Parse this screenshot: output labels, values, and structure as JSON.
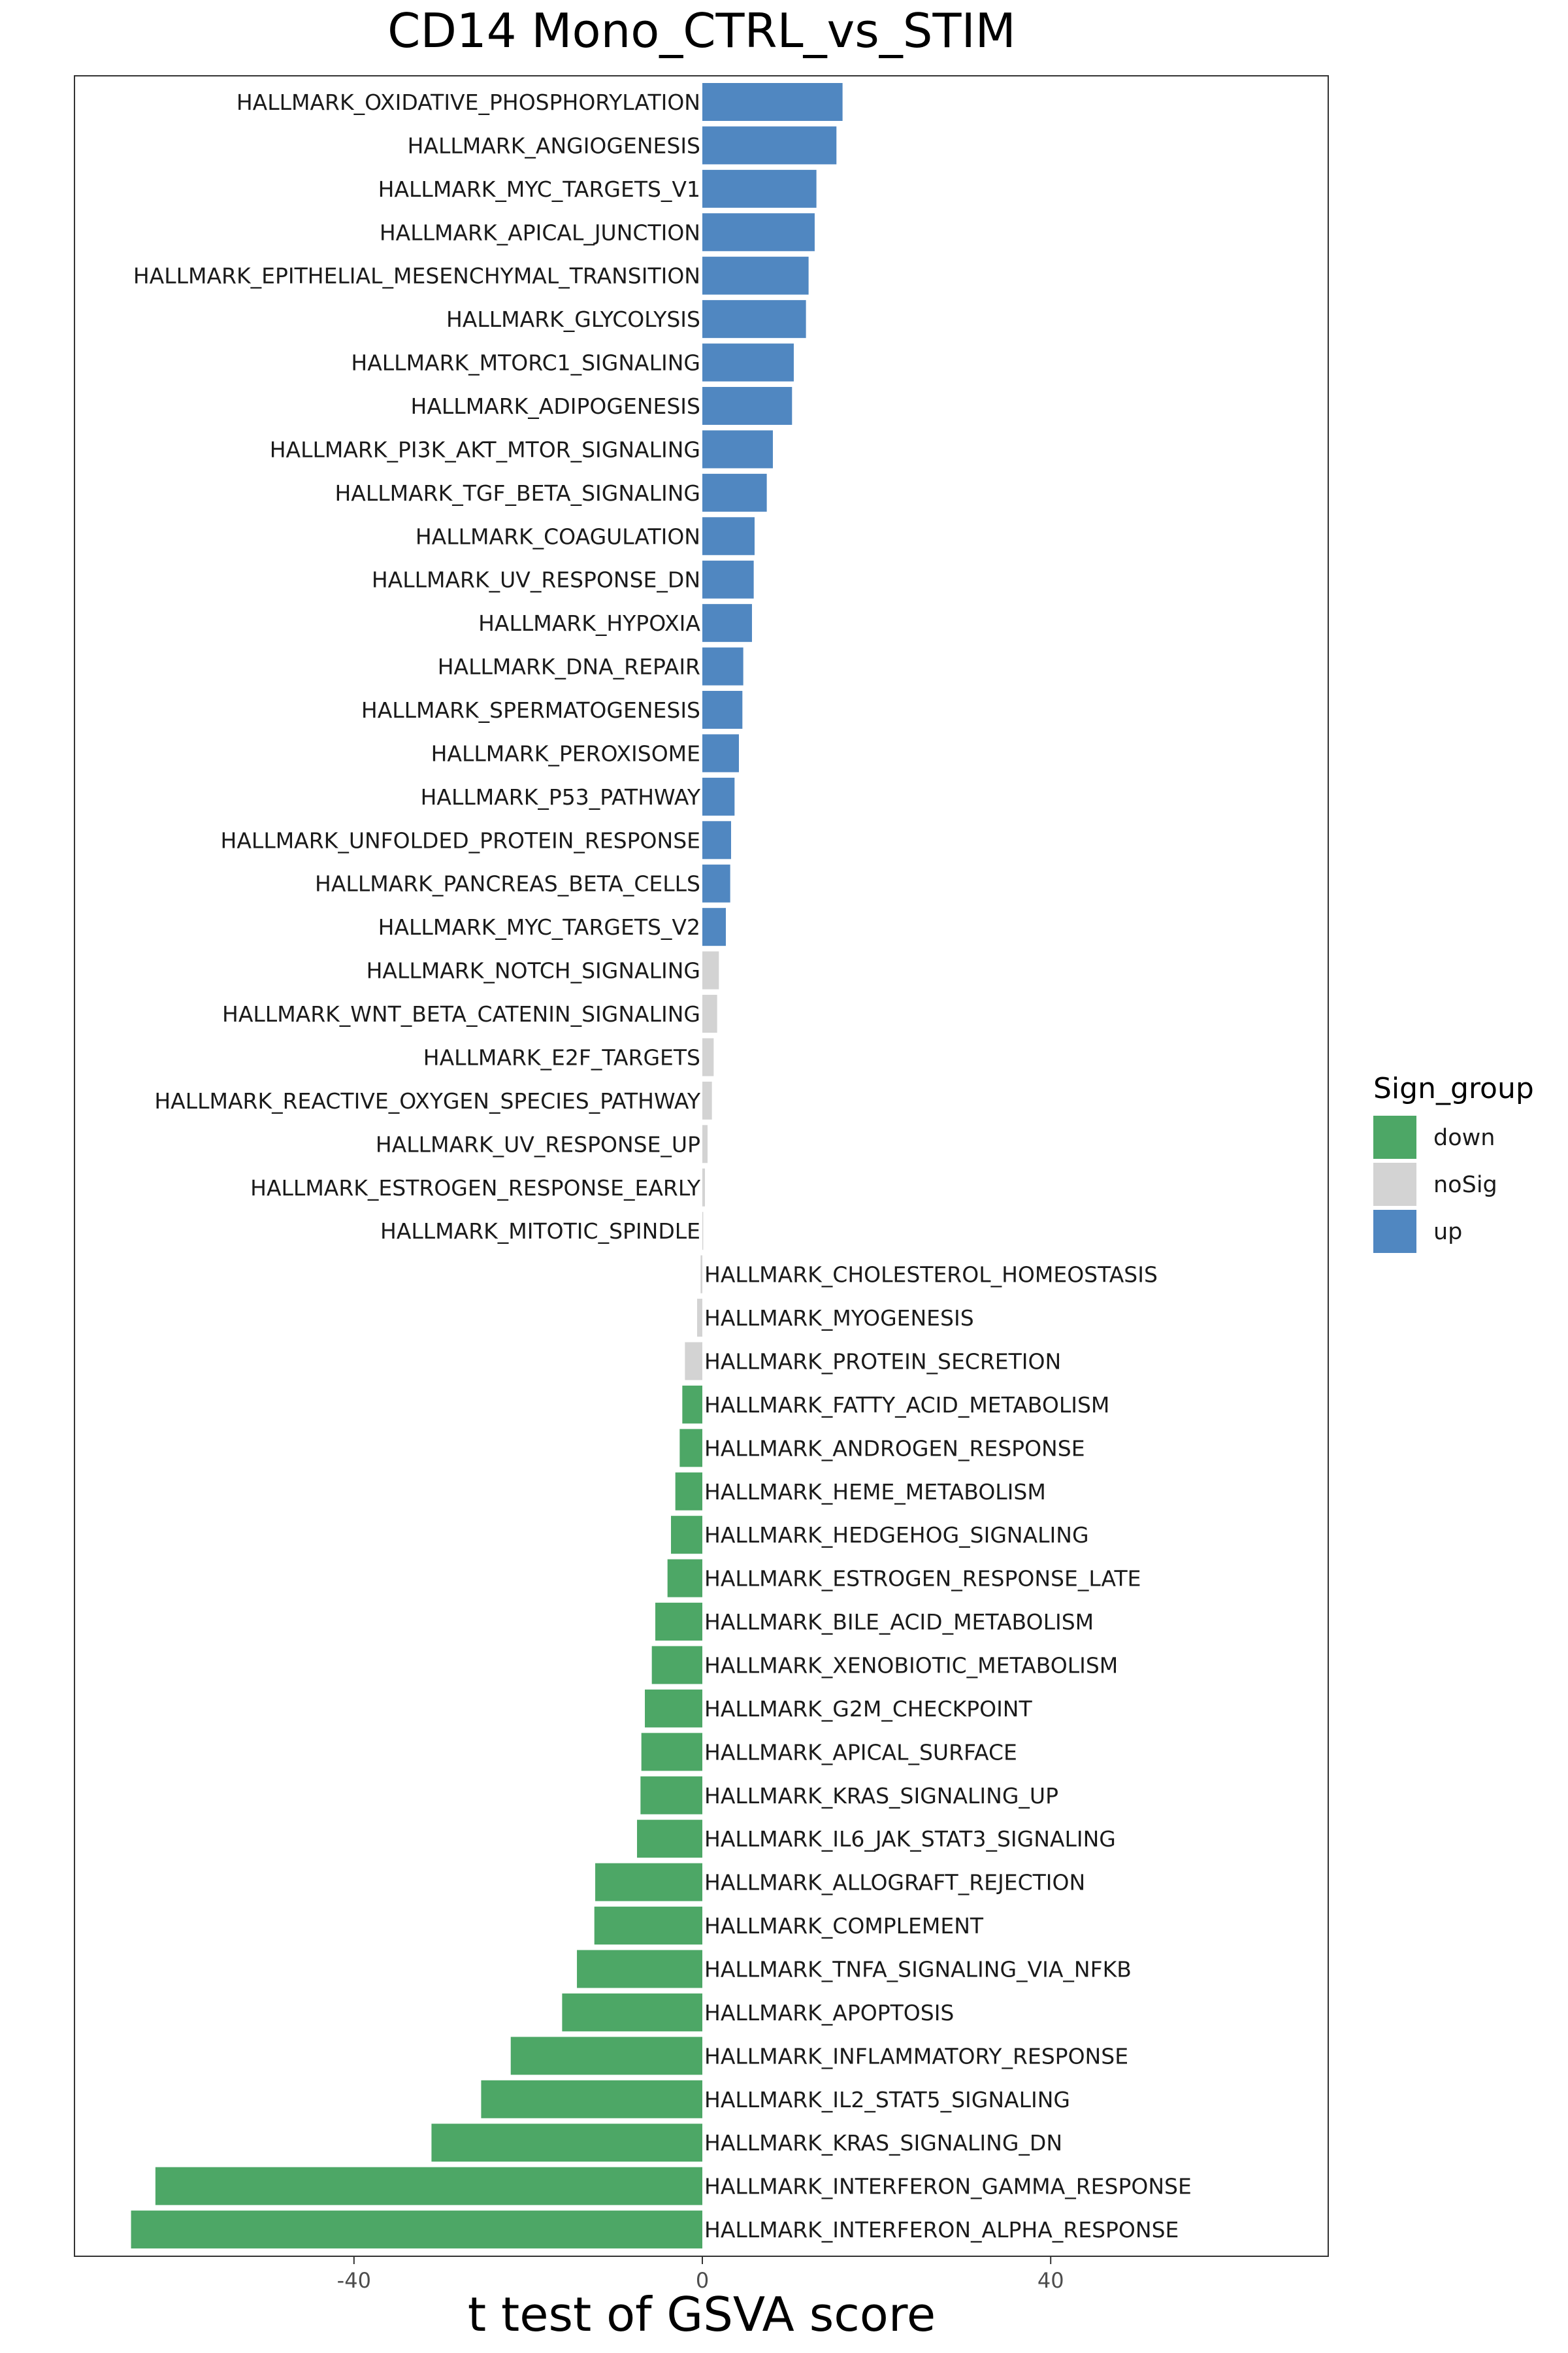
{
  "chart_data": {
    "type": "bar",
    "orientation": "horizontal",
    "title": "CD14 Mono_CTRL_vs_STIM",
    "xlabel": "t test of GSVA score",
    "ylabel": "",
    "xlim": [
      -72,
      72
    ],
    "xticks": [
      -40,
      0,
      40
    ],
    "xtick_labels": [
      "-40",
      "0",
      "40"
    ],
    "grid": false,
    "legend": {
      "title": "Sign_group",
      "placement": "right",
      "entries": [
        {
          "label": "down",
          "color": "#4DA766"
        },
        {
          "label": "noSig",
          "color": "#D3D3D3"
        },
        {
          "label": "up",
          "color": "#5087C1"
        }
      ]
    },
    "colors": {
      "down": "#4DA766",
      "noSig": "#D3D3D3",
      "up": "#5087C1"
    },
    "bars": [
      {
        "label": "HALLMARK_OXIDATIVE_PHOSPHORYLATION",
        "value": 16.1,
        "group": "up"
      },
      {
        "label": "HALLMARK_ANGIOGENESIS",
        "value": 15.4,
        "group": "up"
      },
      {
        "label": "HALLMARK_MYC_TARGETS_V1",
        "value": 13.1,
        "group": "up"
      },
      {
        "label": "HALLMARK_APICAL_JUNCTION",
        "value": 12.9,
        "group": "up"
      },
      {
        "label": "HALLMARK_EPITHELIAL_MESENCHYMAL_TRANSITION",
        "value": 12.2,
        "group": "up"
      },
      {
        "label": "HALLMARK_GLYCOLYSIS",
        "value": 11.9,
        "group": "up"
      },
      {
        "label": "HALLMARK_MTORC1_SIGNALING",
        "value": 10.5,
        "group": "up"
      },
      {
        "label": "HALLMARK_ADIPOGENESIS",
        "value": 10.3,
        "group": "up"
      },
      {
        "label": "HALLMARK_PI3K_AKT_MTOR_SIGNALING",
        "value": 8.1,
        "group": "up"
      },
      {
        "label": "HALLMARK_TGF_BETA_SIGNALING",
        "value": 7.4,
        "group": "up"
      },
      {
        "label": "HALLMARK_COAGULATION",
        "value": 6.0,
        "group": "up"
      },
      {
        "label": "HALLMARK_UV_RESPONSE_DN",
        "value": 5.9,
        "group": "up"
      },
      {
        "label": "HALLMARK_HYPOXIA",
        "value": 5.7,
        "group": "up"
      },
      {
        "label": "HALLMARK_DNA_REPAIR",
        "value": 4.7,
        "group": "up"
      },
      {
        "label": "HALLMARK_SPERMATOGENESIS",
        "value": 4.6,
        "group": "up"
      },
      {
        "label": "HALLMARK_PEROXISOME",
        "value": 4.2,
        "group": "up"
      },
      {
        "label": "HALLMARK_P53_PATHWAY",
        "value": 3.7,
        "group": "up"
      },
      {
        "label": "HALLMARK_UNFOLDED_PROTEIN_RESPONSE",
        "value": 3.3,
        "group": "up"
      },
      {
        "label": "HALLMARK_PANCREAS_BETA_CELLS",
        "value": 3.2,
        "group": "up"
      },
      {
        "label": "HALLMARK_MYC_TARGETS_V2",
        "value": 2.7,
        "group": "up"
      },
      {
        "label": "HALLMARK_NOTCH_SIGNALING",
        "value": 1.9,
        "group": "noSig"
      },
      {
        "label": "HALLMARK_WNT_BETA_CATENIN_SIGNALING",
        "value": 1.7,
        "group": "noSig"
      },
      {
        "label": "HALLMARK_E2F_TARGETS",
        "value": 1.3,
        "group": "noSig"
      },
      {
        "label": "HALLMARK_REACTIVE_OXYGEN_SPECIES_PATHWAY",
        "value": 1.1,
        "group": "noSig"
      },
      {
        "label": "HALLMARK_UV_RESPONSE_UP",
        "value": 0.6,
        "group": "noSig"
      },
      {
        "label": "HALLMARK_ESTROGEN_RESPONSE_EARLY",
        "value": 0.3,
        "group": "noSig"
      },
      {
        "label": "HALLMARK_MITOTIC_SPINDLE",
        "value": 0.1,
        "group": "noSig"
      },
      {
        "label": "HALLMARK_CHOLESTEROL_HOMEOSTASIS",
        "value": -0.2,
        "group": "noSig"
      },
      {
        "label": "HALLMARK_MYOGENESIS",
        "value": -0.6,
        "group": "noSig"
      },
      {
        "label": "HALLMARK_PROTEIN_SECRETION",
        "value": -2.0,
        "group": "noSig"
      },
      {
        "label": "HALLMARK_FATTY_ACID_METABOLISM",
        "value": -2.3,
        "group": "down"
      },
      {
        "label": "HALLMARK_ANDROGEN_RESPONSE",
        "value": -2.6,
        "group": "down"
      },
      {
        "label": "HALLMARK_HEME_METABOLISM",
        "value": -3.1,
        "group": "down"
      },
      {
        "label": "HALLMARK_HEDGEHOG_SIGNALING",
        "value": -3.6,
        "group": "down"
      },
      {
        "label": "HALLMARK_ESTROGEN_RESPONSE_LATE",
        "value": -4.0,
        "group": "down"
      },
      {
        "label": "HALLMARK_BILE_ACID_METABOLISM",
        "value": -5.4,
        "group": "down"
      },
      {
        "label": "HALLMARK_XENOBIOTIC_METABOLISM",
        "value": -5.8,
        "group": "down"
      },
      {
        "label": "HALLMARK_G2M_CHECKPOINT",
        "value": -6.6,
        "group": "down"
      },
      {
        "label": "HALLMARK_APICAL_SURFACE",
        "value": -7.0,
        "group": "down"
      },
      {
        "label": "HALLMARK_KRAS_SIGNALING_UP",
        "value": -7.1,
        "group": "down"
      },
      {
        "label": "HALLMARK_IL6_JAK_STAT3_SIGNALING",
        "value": -7.5,
        "group": "down"
      },
      {
        "label": "HALLMARK_ALLOGRAFT_REJECTION",
        "value": -12.3,
        "group": "down"
      },
      {
        "label": "HALLMARK_COMPLEMENT",
        "value": -12.4,
        "group": "down"
      },
      {
        "label": "HALLMARK_TNFA_SIGNALING_VIA_NFKB",
        "value": -14.4,
        "group": "down"
      },
      {
        "label": "HALLMARK_APOPTOSIS",
        "value": -16.1,
        "group": "down"
      },
      {
        "label": "HALLMARK_INFLAMMATORY_RESPONSE",
        "value": -22.0,
        "group": "down"
      },
      {
        "label": "HALLMARK_IL2_STAT5_SIGNALING",
        "value": -25.4,
        "group": "down"
      },
      {
        "label": "HALLMARK_KRAS_SIGNALING_DN",
        "value": -31.1,
        "group": "down"
      },
      {
        "label": "HALLMARK_INTERFERON_GAMMA_RESPONSE",
        "value": -62.8,
        "group": "down"
      },
      {
        "label": "HALLMARK_INTERFERON_ALPHA_RESPONSE",
        "value": -65.6,
        "group": "down"
      }
    ]
  }
}
